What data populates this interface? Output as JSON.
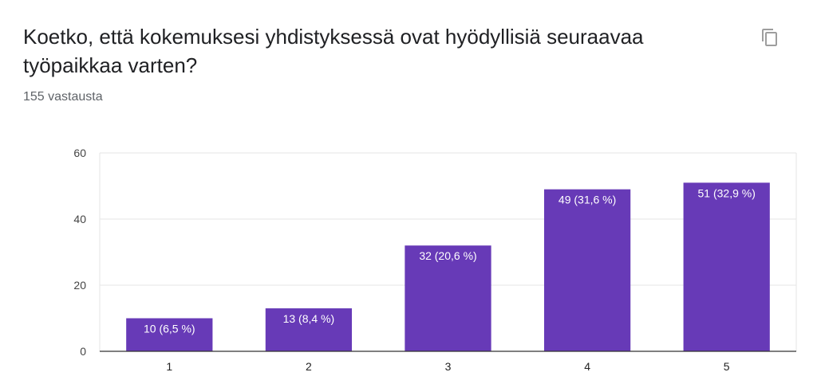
{
  "question": {
    "title": "Koetko, että kokemuksesi yhdistyksessä ovat hyödyllisiä seuraavaa työpaikkaa varten?",
    "response_count": "155 vastausta"
  },
  "toolbar": {
    "copy_icon": "copy-icon"
  },
  "colors": {
    "bar": "#673ab7",
    "grid": "#e6e6e6",
    "axis": "#333333"
  },
  "chart_data": {
    "type": "bar",
    "categories": [
      "1",
      "2",
      "3",
      "4",
      "5"
    ],
    "values": [
      10,
      13,
      32,
      49,
      51
    ],
    "data_labels": [
      "10 (6,5 %)",
      "13 (8,4 %)",
      "32 (20,6 %)",
      "49 (31,6 %)",
      "51 (32,9 %)"
    ],
    "ylim": [
      0,
      60
    ],
    "yticks": [
      0,
      20,
      40,
      60
    ],
    "grid": true,
    "title": "",
    "xlabel": "",
    "ylabel": ""
  }
}
